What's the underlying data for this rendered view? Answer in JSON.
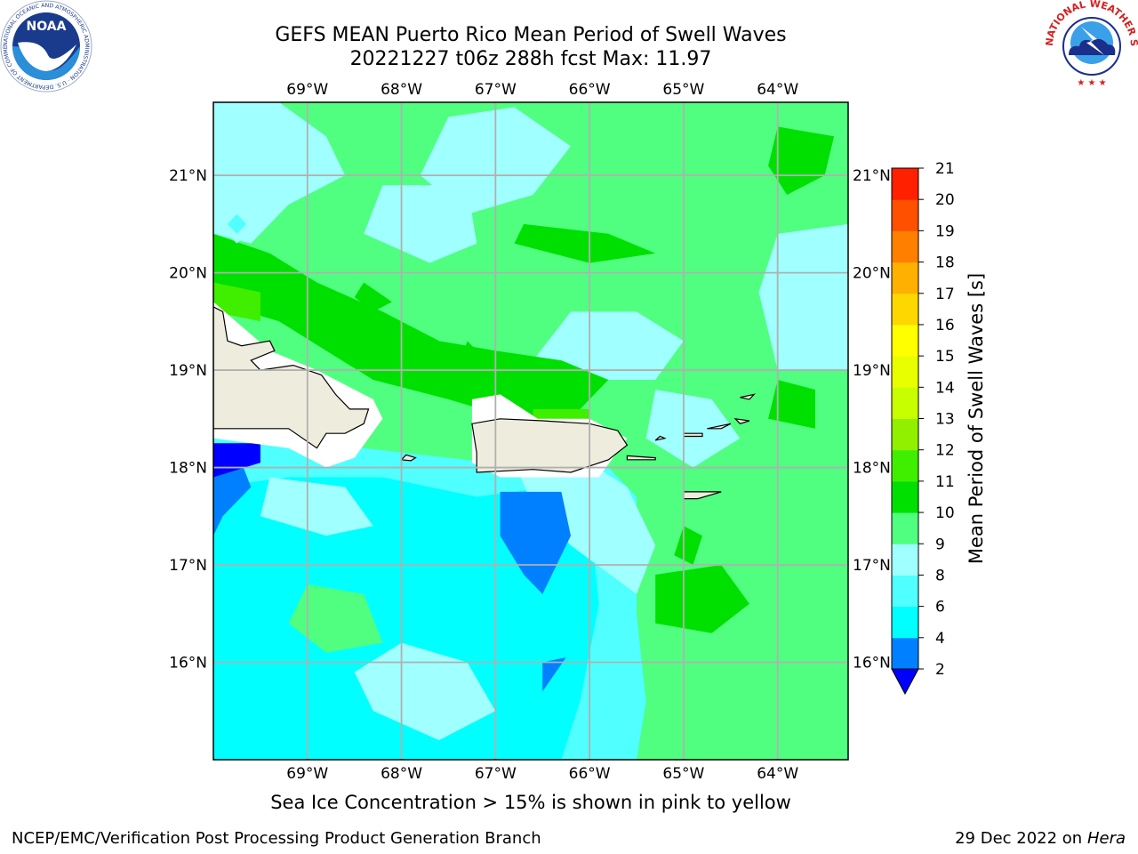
{
  "header": {
    "title_line1": "GEFS MEAN Puerto Rico Mean Period of Swell Waves",
    "title_line2": "20221227 t06z 288h fcst   Max: 11.97"
  },
  "map": {
    "lon_labels": [
      "69°W",
      "68°W",
      "67°W",
      "66°W",
      "65°W",
      "64°W"
    ],
    "lat_labels": [
      "21°N",
      "20°N",
      "19°N",
      "18°N",
      "17°N",
      "16°N"
    ],
    "extent": {
      "lon_min": -70.0,
      "lon_max": -63.25,
      "lat_min": 15.0,
      "lat_max": 21.75
    },
    "land_color": "#eeecdc",
    "no_data_color": "#ffffff"
  },
  "colorbar": {
    "title": "Mean Period of Swell Waves [s]",
    "levels": [
      "2",
      "4",
      "6",
      "8",
      "9",
      "10",
      "11",
      "12",
      "13",
      "14",
      "15",
      "16",
      "17",
      "18",
      "19",
      "20",
      "21"
    ],
    "colors": [
      "#0080ff",
      "#00ffff",
      "#50ffff",
      "#a0ffff",
      "#50ff80",
      "#00e000",
      "#40ee00",
      "#90f000",
      "#c8ff00",
      "#e8ff00",
      "#ffff00",
      "#ffd700",
      "#ffb000",
      "#ff8000",
      "#ff5000",
      "#ff2000"
    ],
    "under_color": "#0000ff"
  },
  "caption": "Sea Ice Concentration > 15% is shown in pink to yellow",
  "footer": {
    "left": "NCEP/EMC/Verification Post Processing Product Generation Branch",
    "right_date": "29 Dec 2022 on",
    "right_machine": "Hera"
  },
  "logos": {
    "noaa_text": "NOAA",
    "noaa_ring": "NATIONAL OCEANIC AND ATMOSPHERIC ADMINISTRATION · U.S. DEPARTMENT OF COMMERCE",
    "nws_ring": "NATIONAL WEATHER SERVICE"
  }
}
